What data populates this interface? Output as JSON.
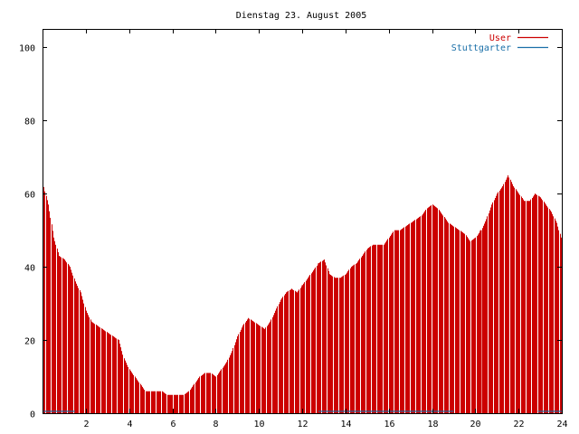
{
  "colors": {
    "user": "#cc0000",
    "stuttgarter": "#1a6fa8",
    "axis": "#000000",
    "background": "#ffffff"
  },
  "chart_data": {
    "type": "bar",
    "title": "Dienstag 23. August 2005",
    "xlabel": "",
    "ylabel": "",
    "xlim": [
      0,
      24
    ],
    "ylim": [
      0,
      105
    ],
    "grid": false,
    "legend_position": "top-right",
    "x_ticks": [
      2,
      4,
      6,
      8,
      10,
      12,
      14,
      16,
      18,
      20,
      22,
      24
    ],
    "y_ticks": [
      0,
      20,
      40,
      60,
      80,
      100
    ],
    "legend": [
      {
        "name": "User",
        "color": "#cc0000"
      },
      {
        "name": "Stuttgarter",
        "color": "#1a6fa8"
      }
    ],
    "series": [
      {
        "name": "User",
        "points": [
          [
            0.0,
            63
          ],
          [
            0.25,
            57
          ],
          [
            0.5,
            48
          ],
          [
            0.75,
            43
          ],
          [
            1.0,
            42
          ],
          [
            1.25,
            40
          ],
          [
            1.5,
            36
          ],
          [
            1.75,
            33
          ],
          [
            2.0,
            28
          ],
          [
            2.25,
            25
          ],
          [
            2.5,
            24
          ],
          [
            2.75,
            23
          ],
          [
            3.0,
            22
          ],
          [
            3.25,
            21
          ],
          [
            3.5,
            20
          ],
          [
            3.75,
            15
          ],
          [
            4.0,
            12
          ],
          [
            4.25,
            10
          ],
          [
            4.5,
            8
          ],
          [
            4.75,
            6
          ],
          [
            5.0,
            6
          ],
          [
            5.25,
            6
          ],
          [
            5.5,
            6
          ],
          [
            5.75,
            5
          ],
          [
            6.0,
            5
          ],
          [
            6.25,
            5
          ],
          [
            6.5,
            5
          ],
          [
            6.75,
            6
          ],
          [
            7.0,
            8
          ],
          [
            7.25,
            10
          ],
          [
            7.5,
            11
          ],
          [
            7.75,
            11
          ],
          [
            8.0,
            10
          ],
          [
            8.25,
            12
          ],
          [
            8.5,
            14
          ],
          [
            8.75,
            17
          ],
          [
            9.0,
            21
          ],
          [
            9.25,
            24
          ],
          [
            9.5,
            26
          ],
          [
            9.75,
            25
          ],
          [
            10.0,
            24
          ],
          [
            10.25,
            23
          ],
          [
            10.5,
            25
          ],
          [
            10.75,
            28
          ],
          [
            11.0,
            31
          ],
          [
            11.25,
            33
          ],
          [
            11.5,
            34
          ],
          [
            11.75,
            33
          ],
          [
            12.0,
            35
          ],
          [
            12.25,
            37
          ],
          [
            12.5,
            39
          ],
          [
            12.75,
            41
          ],
          [
            13.0,
            42
          ],
          [
            13.25,
            38
          ],
          [
            13.5,
            37
          ],
          [
            13.75,
            37
          ],
          [
            14.0,
            38
          ],
          [
            14.25,
            40
          ],
          [
            14.5,
            41
          ],
          [
            14.75,
            43
          ],
          [
            15.0,
            45
          ],
          [
            15.25,
            46
          ],
          [
            15.5,
            46
          ],
          [
            15.75,
            46
          ],
          [
            16.0,
            48
          ],
          [
            16.25,
            50
          ],
          [
            16.5,
            50
          ],
          [
            16.75,
            51
          ],
          [
            17.0,
            52
          ],
          [
            17.25,
            53
          ],
          [
            17.5,
            54
          ],
          [
            17.75,
            56
          ],
          [
            18.0,
            57
          ],
          [
            18.25,
            56
          ],
          [
            18.5,
            54
          ],
          [
            18.75,
            52
          ],
          [
            19.0,
            51
          ],
          [
            19.25,
            50
          ],
          [
            19.5,
            49
          ],
          [
            19.75,
            47
          ],
          [
            20.0,
            48
          ],
          [
            20.25,
            50
          ],
          [
            20.5,
            53
          ],
          [
            20.75,
            57
          ],
          [
            21.0,
            60
          ],
          [
            21.25,
            62
          ],
          [
            21.5,
            65
          ],
          [
            21.75,
            62
          ],
          [
            22.0,
            60
          ],
          [
            22.25,
            58
          ],
          [
            22.5,
            58
          ],
          [
            22.75,
            60
          ],
          [
            23.0,
            59
          ],
          [
            23.25,
            57
          ],
          [
            23.5,
            55
          ],
          [
            23.75,
            52
          ],
          [
            24.0,
            47
          ]
        ],
        "highlighted_x": [
          12.0,
          12.75,
          20.25
        ]
      },
      {
        "name": "Stuttgarter",
        "points": [
          [
            0.0,
            1
          ],
          [
            1.5,
            1
          ],
          [
            12.75,
            1
          ],
          [
            19.0,
            1
          ],
          [
            22.9,
            1
          ],
          [
            24.0,
            1
          ]
        ]
      }
    ]
  }
}
